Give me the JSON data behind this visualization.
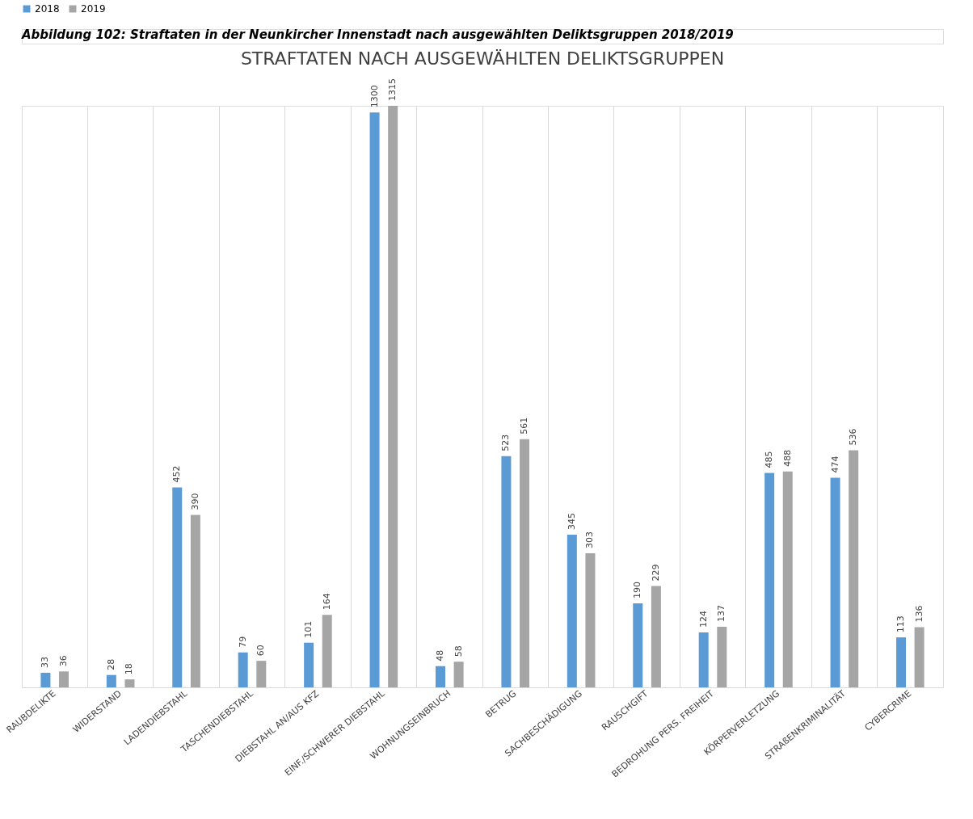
{
  "chart_data": {
    "type": "bar",
    "title": "STRAFTATEN NACH AUSGEWÄHLTEN DELIKTSGRUPPEN",
    "annotations": [
      "Abbildung 102: Straftaten in der Neunkircher Innenstadt nach ausgewählten Deliktsgruppen 2018/2019"
    ],
    "categories": [
      "RAUBDELIKTE",
      "WIDERSTAND",
      "LADENDIEBSTAHL",
      "TASCHENDIEBSTAHL",
      "DIEBSTAHL AN/AUS KFZ",
      "EINF./SCHWERER DIEBSTAHL",
      "WOHNUNGSEINBRUCH",
      "BETRUG",
      "SACHBESCHÄDIGUNG",
      "RAUSCHGIFT",
      "BEDROHUNG PERS. FREIHEIT",
      "KÖRPERVERLETZUNG",
      "STRAßENKRIMINALITÄT",
      "CYBERCRIME"
    ],
    "series": [
      {
        "name": "2018",
        "color": "#5b9bd5",
        "values": [
          33,
          28,
          452,
          79,
          101,
          1300,
          48,
          523,
          345,
          190,
          124,
          485,
          474,
          113
        ]
      },
      {
        "name": "2019",
        "color": "#a5a5a5",
        "values": [
          36,
          18,
          390,
          60,
          164,
          1315,
          58,
          561,
          303,
          229,
          137,
          488,
          536,
          136
        ]
      }
    ],
    "data_labels": true,
    "legend": "top",
    "grid": "x"
  }
}
